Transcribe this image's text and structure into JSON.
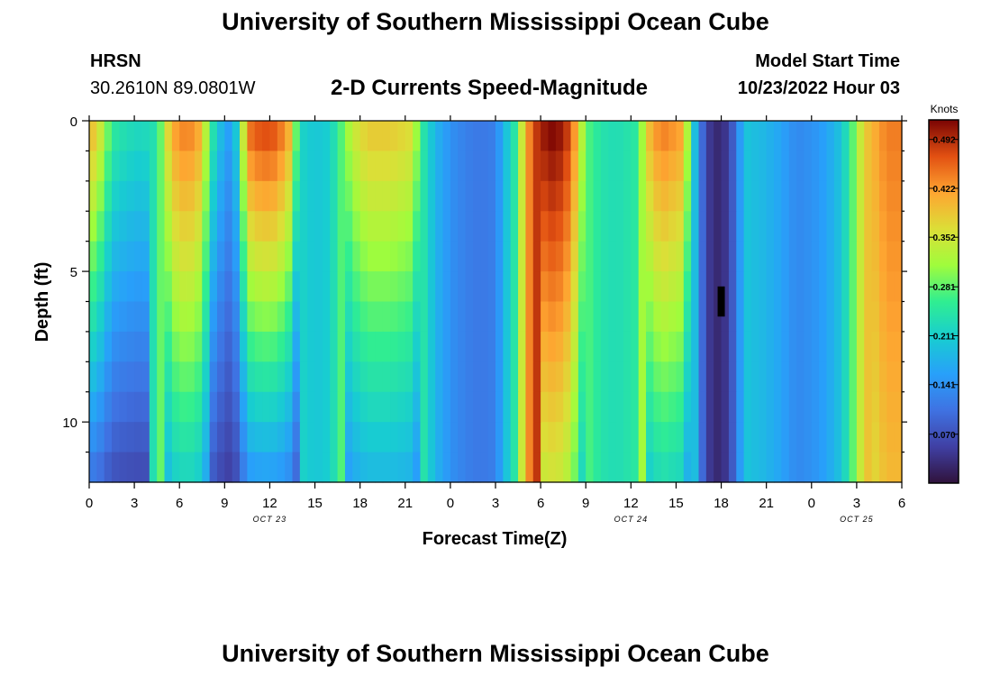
{
  "title_top": "University of Southern Mississippi Ocean Cube",
  "title_bottom": "University of Southern Mississippi Ocean Cube",
  "station": {
    "name": "HRSN",
    "coords": "30.2610N  89.0801W"
  },
  "plot_title": "2-D Currents Speed-Magnitude",
  "model": {
    "label": "Model Start Time",
    "value": "10/23/2022 Hour 03"
  },
  "colors": {
    "background": "#ffffff",
    "axis": "#000000",
    "missing_cell": "#000000"
  },
  "chart_data": {
    "type": "heatmap",
    "title": "2-D Currents Speed-Magnitude",
    "xlabel": "Forecast Time(Z)",
    "ylabel": "Depth (ft)",
    "colorbar_label": "Knots",
    "colorbar_ticks": [
      "0.492",
      "0.422",
      "0.352",
      "0.281",
      "0.211",
      "0.141",
      "0.070"
    ],
    "colorbar_range": [
      0.0,
      0.52
    ],
    "colormap": "turbo",
    "x_unit": "hours since OCT 23 00Z",
    "x_range": [
      0,
      54
    ],
    "x_ticks": [
      0,
      3,
      6,
      9,
      12,
      15,
      18,
      21,
      24,
      27,
      30,
      33,
      36,
      39,
      42,
      45,
      48,
      51,
      54
    ],
    "x_tick_labels": [
      "0",
      "3",
      "6",
      "9",
      "12",
      "15",
      "18",
      "21",
      "0",
      "3",
      "6",
      "9",
      "12",
      "15",
      "18",
      "21",
      "0",
      "3",
      "6"
    ],
    "date_labels": [
      {
        "x": 12,
        "text": "OCT 23"
      },
      {
        "x": 36,
        "text": "OCT 24"
      },
      {
        "x": 51,
        "text": "OCT 25"
      }
    ],
    "y_range": [
      0,
      12
    ],
    "y_ticks": [
      0,
      5,
      10
    ],
    "y_tick_labels": [
      "0",
      "5",
      "10"
    ],
    "depth_layers": [
      0,
      1,
      2,
      3,
      4,
      5,
      6,
      7,
      8,
      9,
      10,
      11
    ],
    "time_step_hours": 0.5,
    "speed_profile_surface": [
      [
        0,
        0.4
      ],
      [
        0.5,
        0.37
      ],
      [
        1,
        0.32
      ],
      [
        1.5,
        0.25
      ],
      [
        2.5,
        0.23
      ],
      [
        3.5,
        0.22
      ],
      [
        4.5,
        0.24
      ],
      [
        5,
        0.33
      ],
      [
        5.5,
        0.41
      ],
      [
        6.5,
        0.44
      ],
      [
        7.5,
        0.4
      ],
      [
        8,
        0.26
      ],
      [
        8.5,
        0.21
      ],
      [
        9,
        0.16
      ],
      [
        9.5,
        0.15
      ],
      [
        10,
        0.25
      ],
      [
        10.5,
        0.44
      ],
      [
        11.5,
        0.47
      ],
      [
        12.5,
        0.46
      ],
      [
        13.3,
        0.4
      ],
      [
        14,
        0.22
      ],
      [
        15,
        0.2
      ],
      [
        16,
        0.21
      ],
      [
        17.5,
        0.34
      ],
      [
        18.5,
        0.38
      ],
      [
        20,
        0.38
      ],
      [
        21.5,
        0.36
      ],
      [
        22,
        0.26
      ],
      [
        23,
        0.18
      ],
      [
        24,
        0.14
      ],
      [
        25,
        0.12
      ],
      [
        26,
        0.11
      ],
      [
        27,
        0.12
      ],
      [
        27.7,
        0.2
      ],
      [
        28,
        0.19
      ],
      [
        29,
        0.4
      ],
      [
        29.5,
        0.47
      ],
      [
        30,
        0.5
      ],
      [
        31,
        0.52
      ],
      [
        32,
        0.47
      ],
      [
        33,
        0.28
      ],
      [
        34,
        0.24
      ],
      [
        35,
        0.23
      ],
      [
        36.5,
        0.25
      ],
      [
        37,
        0.38
      ],
      [
        38,
        0.44
      ],
      [
        39.5,
        0.41
      ],
      [
        40,
        0.24
      ],
      [
        40.5,
        0.14
      ],
      [
        41,
        0.05
      ],
      [
        42,
        0.02
      ],
      [
        43,
        0.1
      ],
      [
        43.5,
        0.2
      ],
      [
        45,
        0.18
      ],
      [
        46,
        0.16
      ],
      [
        47,
        0.13
      ],
      [
        48,
        0.14
      ],
      [
        49,
        0.16
      ],
      [
        50,
        0.2
      ],
      [
        50.5,
        0.25
      ],
      [
        51,
        0.31
      ],
      [
        51.5,
        0.38
      ],
      [
        53,
        0.44
      ],
      [
        54,
        0.44
      ]
    ],
    "depth_modifiers": [
      {
        "x_range": [
          0,
          4
        ],
        "trend": "decreasing with depth",
        "surface": 0.4,
        "bottom": 0.12
      },
      {
        "x_range": [
          5,
          8
        ],
        "trend": "decreasing with depth",
        "surface": 0.44,
        "bottom": 0.23
      },
      {
        "x_range": [
          8,
          14
        ],
        "trend": "decreasing with depth",
        "surface": 0.46,
        "bottom": 0.16
      },
      {
        "x_range": [
          17,
          22
        ],
        "trend": "decreasing with depth",
        "surface": 0.38,
        "bottom": 0.19
      },
      {
        "x_range": [
          30,
          33
        ],
        "trend": "decreasing slightly",
        "surface": 0.52,
        "bottom": 0.36
      },
      {
        "x_range": [
          37,
          40
        ],
        "trend": "decreasing with depth",
        "surface": 0.44,
        "bottom": 0.24
      },
      {
        "x_range": [
          52,
          54
        ],
        "trend": "constant",
        "surface": 0.44,
        "bottom": 0.4
      }
    ],
    "missing_cell": {
      "x": 42,
      "depth_range": [
        5.5,
        6.5
      ]
    }
  }
}
